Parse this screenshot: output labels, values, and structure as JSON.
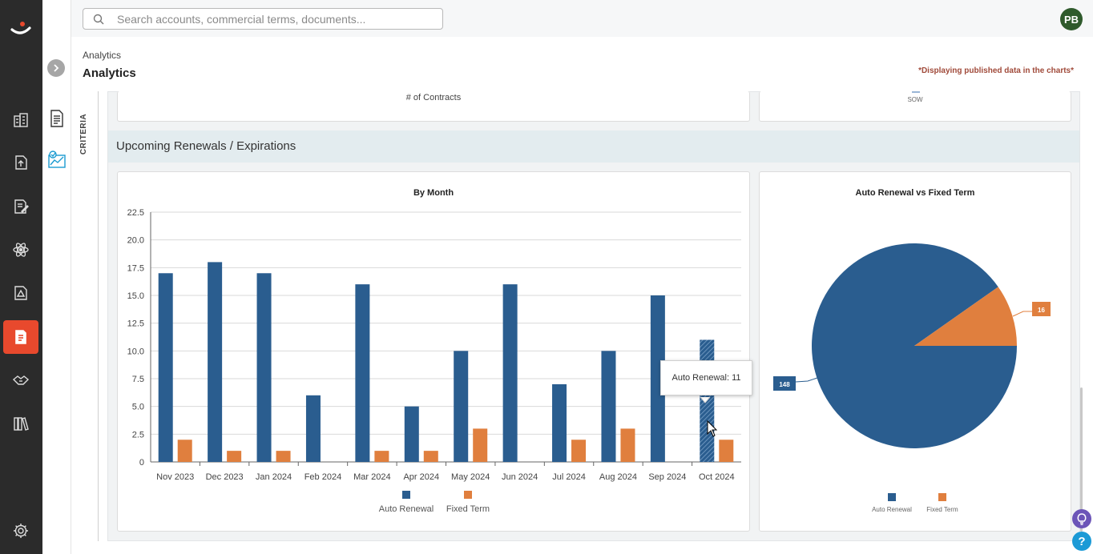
{
  "search": {
    "placeholder": "Search accounts, commercial terms, documents..."
  },
  "user": {
    "initials": "PB"
  },
  "breadcrumb": "Analytics",
  "page_title": "Analytics",
  "notice": "*Displaying published data in the charts*",
  "criteria_label": "CRITERIA",
  "top_cards": {
    "left_label": "# of Contracts",
    "right_label": "SOW"
  },
  "section": {
    "title": "Upcoming Renewals / Expirations"
  },
  "colors": {
    "auto_renewal": "#2a5d8f",
    "fixed_term": "#e07f3e",
    "active_nav": "#e8492d"
  },
  "rail": {
    "items": [
      "buildings-icon",
      "upload-icon",
      "edit-document-icon",
      "atom-icon",
      "warning-document-icon",
      "reports-icon",
      "handshake-icon",
      "library-icon",
      "settings-icon"
    ],
    "active": "reports-icon"
  },
  "chart_data": [
    {
      "type": "bar",
      "title": "By Month",
      "categories": [
        "Nov 2023",
        "Dec 2023",
        "Jan 2024",
        "Feb 2024",
        "Mar 2024",
        "Apr 2024",
        "May 2024",
        "Jun 2024",
        "Jul 2024",
        "Aug 2024",
        "Sep 2024",
        "Oct 2024"
      ],
      "series": [
        {
          "name": "Auto Renewal",
          "values": [
            17,
            18,
            17,
            6,
            16,
            5,
            10,
            16,
            7,
            10,
            15,
            11
          ]
        },
        {
          "name": "Fixed Term",
          "values": [
            2,
            1,
            1,
            0,
            1,
            1,
            3,
            0,
            2,
            3,
            0,
            2
          ]
        }
      ],
      "yticks": [
        "0",
        "2.5",
        "5.0",
        "7.5",
        "10.0",
        "12.5",
        "15.0",
        "17.5",
        "20.0",
        "22.5"
      ],
      "ylim": [
        0,
        22.5
      ],
      "grid": true,
      "legend": "bottom",
      "tooltip": "Auto Renewal: 11"
    },
    {
      "type": "pie",
      "title": "Auto Renewal vs Fixed Term",
      "labels": [
        "Auto Renewal",
        "Fixed Term"
      ],
      "values": [
        148,
        16
      ],
      "legend": "bottom"
    }
  ]
}
